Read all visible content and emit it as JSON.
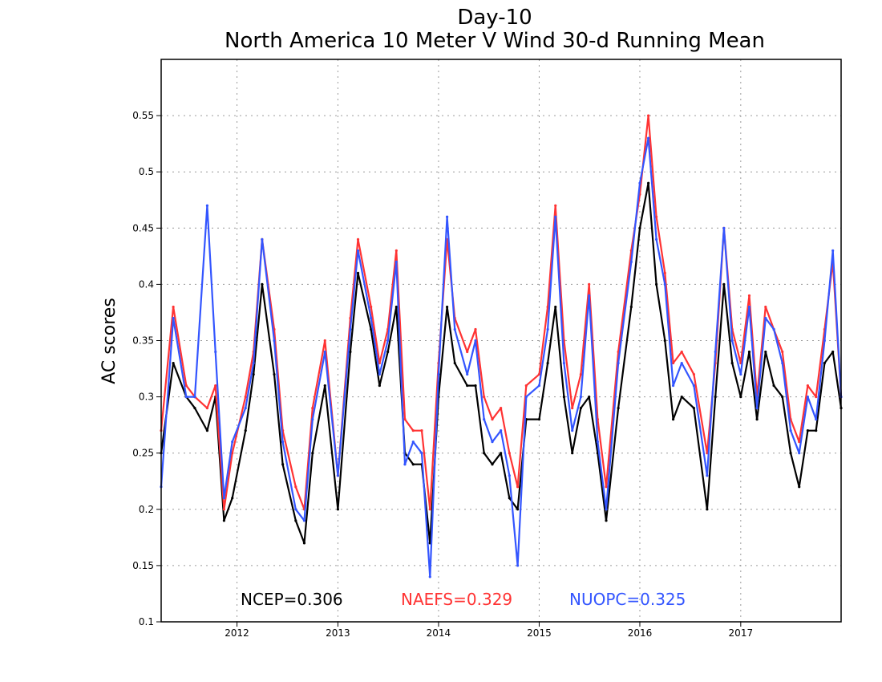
{
  "chart_data": {
    "type": "line",
    "title_line1": "Day-10",
    "title_line2": "North America 10 Meter V Wind 30-d Running Mean",
    "xlabel": "",
    "ylabel": "AC scores",
    "ylim": [
      0.1,
      0.6
    ],
    "xlim": [
      "2011-04-01",
      "2017-12-31"
    ],
    "y_ticks": [
      "0.1",
      "0.15",
      "0.2",
      "0.25",
      "0.3",
      "0.35",
      "0.4",
      "0.45",
      "0.5",
      "0.55"
    ],
    "x_ticks": [
      "2012",
      "2013",
      "2014",
      "2015",
      "2016",
      "2017"
    ],
    "grid": true,
    "legend_placement": "bottom",
    "series": [
      {
        "name": "NCEP",
        "label": "NCEP=0.306",
        "color": "#000000",
        "x": [
          "2011-04-01",
          "2011-05-15",
          "2011-07-01",
          "2011-08-01",
          "2011-09-15",
          "2011-10-15",
          "2011-11-15",
          "2011-12-15",
          "2012-02-01",
          "2012-03-01",
          "2012-04-01",
          "2012-05-15",
          "2012-06-15",
          "2012-08-01",
          "2012-09-01",
          "2012-10-01",
          "2012-11-15",
          "2013-01-01",
          "2013-02-15",
          "2013-03-15",
          "2013-05-01",
          "2013-06-01",
          "2013-07-01",
          "2013-08-01",
          "2013-09-01",
          "2013-10-01",
          "2013-11-01",
          "2013-12-01",
          "2014-01-01",
          "2014-02-01",
          "2014-03-01",
          "2014-04-15",
          "2014-05-15",
          "2014-06-15",
          "2014-07-15",
          "2014-08-15",
          "2014-09-15",
          "2014-10-15",
          "2014-11-15",
          "2015-01-01",
          "2015-02-01",
          "2015-03-01",
          "2015-04-01",
          "2015-05-01",
          "2015-06-01",
          "2015-07-01",
          "2015-08-01",
          "2015-09-01",
          "2015-10-15",
          "2015-12-01",
          "2016-01-01",
          "2016-02-01",
          "2016-03-01",
          "2016-04-01",
          "2016-05-01",
          "2016-06-01",
          "2016-07-15",
          "2016-09-01",
          "2016-10-01",
          "2016-11-01",
          "2016-12-01",
          "2017-01-01",
          "2017-02-01",
          "2017-03-01",
          "2017-04-01",
          "2017-05-01",
          "2017-06-01",
          "2017-07-01",
          "2017-08-01",
          "2017-09-01",
          "2017-10-01",
          "2017-11-01",
          "2017-12-01",
          "2017-12-31"
        ],
        "values": [
          0.25,
          0.33,
          0.3,
          0.29,
          0.27,
          0.3,
          0.19,
          0.21,
          0.27,
          0.32,
          0.4,
          0.32,
          0.24,
          0.19,
          0.17,
          0.25,
          0.31,
          0.2,
          0.34,
          0.41,
          0.36,
          0.31,
          0.34,
          0.38,
          0.25,
          0.24,
          0.24,
          0.17,
          0.3,
          0.38,
          0.33,
          0.31,
          0.31,
          0.25,
          0.24,
          0.25,
          0.21,
          0.2,
          0.28,
          0.28,
          0.33,
          0.38,
          0.3,
          0.25,
          0.29,
          0.3,
          0.25,
          0.19,
          0.29,
          0.38,
          0.45,
          0.49,
          0.4,
          0.35,
          0.28,
          0.3,
          0.29,
          0.2,
          0.3,
          0.4,
          0.33,
          0.3,
          0.34,
          0.28,
          0.34,
          0.31,
          0.3,
          0.25,
          0.22,
          0.27,
          0.27,
          0.33,
          0.34,
          0.29
        ]
      },
      {
        "name": "NAEFS",
        "label": "NAEFS=0.329",
        "color": "#ff3333",
        "x": [
          "2011-04-01",
          "2011-05-15",
          "2011-07-01",
          "2011-08-01",
          "2011-09-15",
          "2011-10-15",
          "2011-11-15",
          "2011-12-15",
          "2012-02-01",
          "2012-03-01",
          "2012-04-01",
          "2012-05-15",
          "2012-06-15",
          "2012-08-01",
          "2012-09-01",
          "2012-10-01",
          "2012-11-15",
          "2013-01-01",
          "2013-02-15",
          "2013-03-15",
          "2013-05-01",
          "2013-06-01",
          "2013-07-01",
          "2013-08-01",
          "2013-09-01",
          "2013-10-01",
          "2013-11-01",
          "2013-12-01",
          "2014-01-01",
          "2014-02-01",
          "2014-03-01",
          "2014-04-15",
          "2014-05-15",
          "2014-06-15",
          "2014-07-15",
          "2014-08-15",
          "2014-09-15",
          "2014-10-15",
          "2014-11-15",
          "2015-01-01",
          "2015-02-01",
          "2015-03-01",
          "2015-04-01",
          "2015-05-01",
          "2015-06-01",
          "2015-07-01",
          "2015-08-01",
          "2015-09-01",
          "2015-10-15",
          "2015-12-01",
          "2016-01-01",
          "2016-02-01",
          "2016-03-01",
          "2016-04-01",
          "2016-05-01",
          "2016-06-01",
          "2016-07-15",
          "2016-09-01",
          "2016-10-01",
          "2016-11-01",
          "2016-12-01",
          "2017-01-01",
          "2017-02-01",
          "2017-03-01",
          "2017-04-01",
          "2017-05-01",
          "2017-06-01",
          "2017-07-01",
          "2017-08-01",
          "2017-09-01",
          "2017-10-01",
          "2017-11-01",
          "2017-12-01",
          "2017-12-31"
        ],
        "values": [
          0.27,
          0.38,
          0.31,
          0.3,
          0.29,
          0.31,
          0.2,
          0.25,
          0.3,
          0.34,
          0.44,
          0.36,
          0.27,
          0.22,
          0.2,
          0.29,
          0.35,
          0.23,
          0.37,
          0.44,
          0.38,
          0.33,
          0.36,
          0.43,
          0.28,
          0.27,
          0.27,
          0.2,
          0.33,
          0.44,
          0.37,
          0.34,
          0.36,
          0.3,
          0.28,
          0.29,
          0.25,
          0.22,
          0.31,
          0.32,
          0.38,
          0.47,
          0.35,
          0.29,
          0.32,
          0.4,
          0.28,
          0.22,
          0.34,
          0.43,
          0.48,
          0.55,
          0.46,
          0.41,
          0.33,
          0.34,
          0.32,
          0.25,
          0.33,
          0.45,
          0.36,
          0.33,
          0.39,
          0.3,
          0.38,
          0.36,
          0.34,
          0.28,
          0.26,
          0.31,
          0.3,
          0.36,
          0.42,
          0.3
        ]
      },
      {
        "name": "NUOPC",
        "label": "NUOPC=0.325",
        "color": "#3355ff",
        "x": [
          "2011-04-01",
          "2011-05-15",
          "2011-07-01",
          "2011-08-01",
          "2011-09-15",
          "2011-10-15",
          "2011-11-15",
          "2011-12-15",
          "2012-02-01",
          "2012-03-01",
          "2012-04-01",
          "2012-05-15",
          "2012-06-15",
          "2012-08-01",
          "2012-09-01",
          "2012-10-01",
          "2012-11-15",
          "2013-01-01",
          "2013-02-15",
          "2013-03-15",
          "2013-05-01",
          "2013-06-01",
          "2013-07-01",
          "2013-08-01",
          "2013-09-01",
          "2013-10-01",
          "2013-11-01",
          "2013-12-01",
          "2014-01-01",
          "2014-02-01",
          "2014-03-01",
          "2014-04-15",
          "2014-05-15",
          "2014-06-15",
          "2014-07-15",
          "2014-08-15",
          "2014-09-15",
          "2014-10-15",
          "2014-11-15",
          "2015-01-01",
          "2015-02-01",
          "2015-03-01",
          "2015-04-01",
          "2015-05-01",
          "2015-06-01",
          "2015-07-01",
          "2015-08-01",
          "2015-09-01",
          "2015-10-15",
          "2015-12-01",
          "2016-01-01",
          "2016-02-01",
          "2016-03-01",
          "2016-04-01",
          "2016-05-01",
          "2016-06-01",
          "2016-07-15",
          "2016-09-01",
          "2016-10-01",
          "2016-11-01",
          "2016-12-01",
          "2017-01-01",
          "2017-02-01",
          "2017-03-01",
          "2017-04-01",
          "2017-05-01",
          "2017-06-01",
          "2017-07-01",
          "2017-08-01",
          "2017-09-01",
          "2017-10-01",
          "2017-11-01",
          "2017-12-01",
          "2017-12-31"
        ],
        "values": [
          0.22,
          0.37,
          0.3,
          0.3,
          0.47,
          0.34,
          0.21,
          0.26,
          0.29,
          0.33,
          0.44,
          0.35,
          0.26,
          0.2,
          0.19,
          0.28,
          0.34,
          0.23,
          0.36,
          0.43,
          0.37,
          0.32,
          0.35,
          0.42,
          0.24,
          0.26,
          0.25,
          0.14,
          0.32,
          0.46,
          0.36,
          0.32,
          0.35,
          0.28,
          0.26,
          0.27,
          0.23,
          0.15,
          0.3,
          0.31,
          0.36,
          0.46,
          0.33,
          0.27,
          0.3,
          0.39,
          0.26,
          0.2,
          0.33,
          0.42,
          0.49,
          0.53,
          0.44,
          0.4,
          0.31,
          0.33,
          0.31,
          0.23,
          0.34,
          0.45,
          0.35,
          0.32,
          0.38,
          0.29,
          0.37,
          0.36,
          0.33,
          0.27,
          0.25,
          0.3,
          0.28,
          0.35,
          0.43,
          0.3
        ]
      }
    ]
  }
}
